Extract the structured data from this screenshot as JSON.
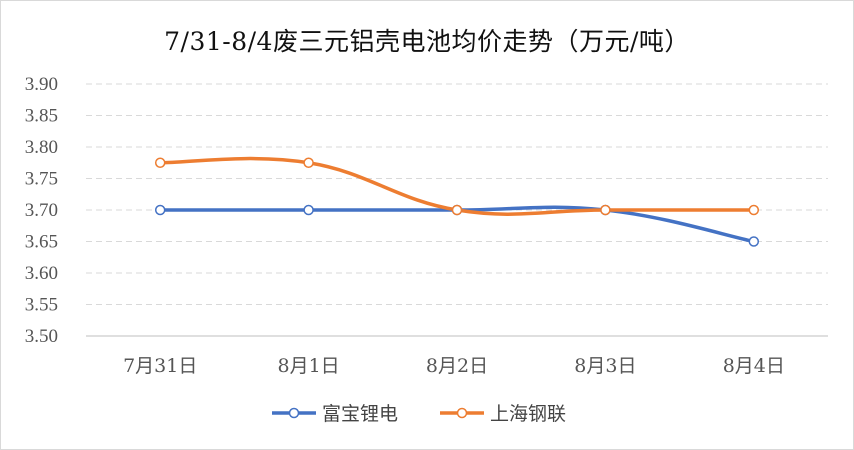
{
  "chart_data": {
    "type": "line",
    "title": "7/31-8/4废三元铝壳电池均价走势（万元/吨）",
    "categories": [
      "7月31日",
      "8月1日",
      "8月2日",
      "8月3日",
      "8月4日"
    ],
    "series": [
      {
        "name": "富宝锂电",
        "values": [
          3.7,
          3.7,
          3.7,
          3.7,
          3.65
        ],
        "color": "#4472c4"
      },
      {
        "name": "上海钢联",
        "values": [
          3.775,
          3.775,
          3.7,
          3.7,
          3.7
        ],
        "color": "#ed7d31"
      }
    ],
    "ylim": [
      3.5,
      3.9
    ],
    "yticks": [
      "3.50",
      "3.55",
      "3.60",
      "3.65",
      "3.70",
      "3.75",
      "3.80",
      "3.85",
      "3.90"
    ],
    "grid": true,
    "legend_position": "bottom",
    "xlabel": "",
    "ylabel": ""
  }
}
